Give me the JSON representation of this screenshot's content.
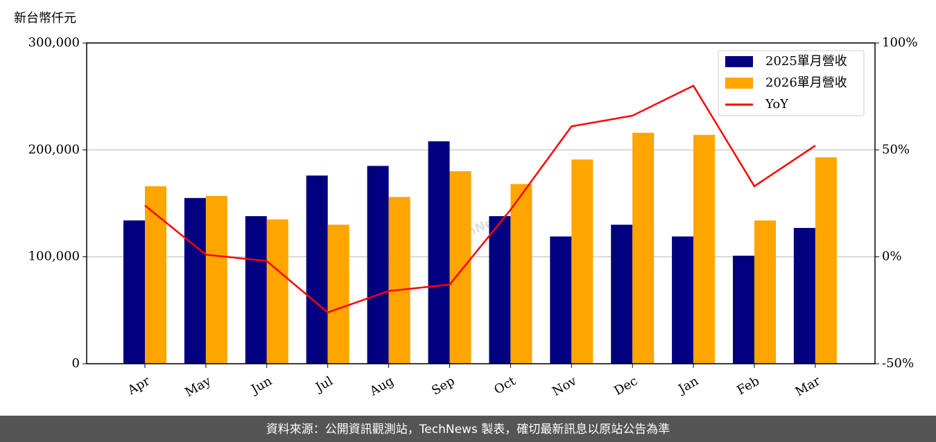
{
  "chart_data": {
    "type": "bar",
    "y_label": "新台幣仟元",
    "watermark": "TechNews",
    "footer": "資料來源：公開資訊觀測站，TechNews 製表，確切最新訊息以原站公告為準",
    "categories": [
      "Apr",
      "May",
      "Jun",
      "Jul",
      "Aug",
      "Sep",
      "Oct",
      "Nov",
      "Dec",
      "Jan",
      "Feb",
      "Mar"
    ],
    "series": [
      {
        "name": "2025單月營收",
        "type": "bar",
        "color": "#000080",
        "values": [
          134000,
          155000,
          138000,
          176000,
          185000,
          208000,
          138000,
          119000,
          130000,
          119000,
          101000,
          127000
        ]
      },
      {
        "name": "2026單月營收",
        "type": "bar",
        "color": "#ffa500",
        "values": [
          166000,
          157000,
          135000,
          130000,
          156000,
          180000,
          168000,
          191000,
          216000,
          214000,
          134000,
          193000
        ]
      },
      {
        "name": "YoY",
        "type": "line",
        "axis": "y2",
        "color": "#ff0000",
        "values": [
          24,
          1,
          -2,
          -26,
          -16,
          -13,
          22,
          61,
          66,
          80,
          33,
          52
        ]
      }
    ],
    "ylim": [
      0,
      300000
    ],
    "yticks": [
      0,
      {
        "value": 100000,
        "label": "100,000"
      },
      {
        "value": 200000,
        "label": "200,000"
      },
      {
        "value": 300000,
        "label": "300,000"
      }
    ],
    "y2lim": [
      -50,
      100
    ],
    "y2ticks": [
      {
        "value": -50,
        "label": "-50%"
      },
      {
        "value": 0,
        "label": "0%"
      },
      {
        "value": 50,
        "label": "50%"
      },
      {
        "value": 100,
        "label": "100%"
      }
    ],
    "grid": true,
    "legend": "upper right"
  }
}
